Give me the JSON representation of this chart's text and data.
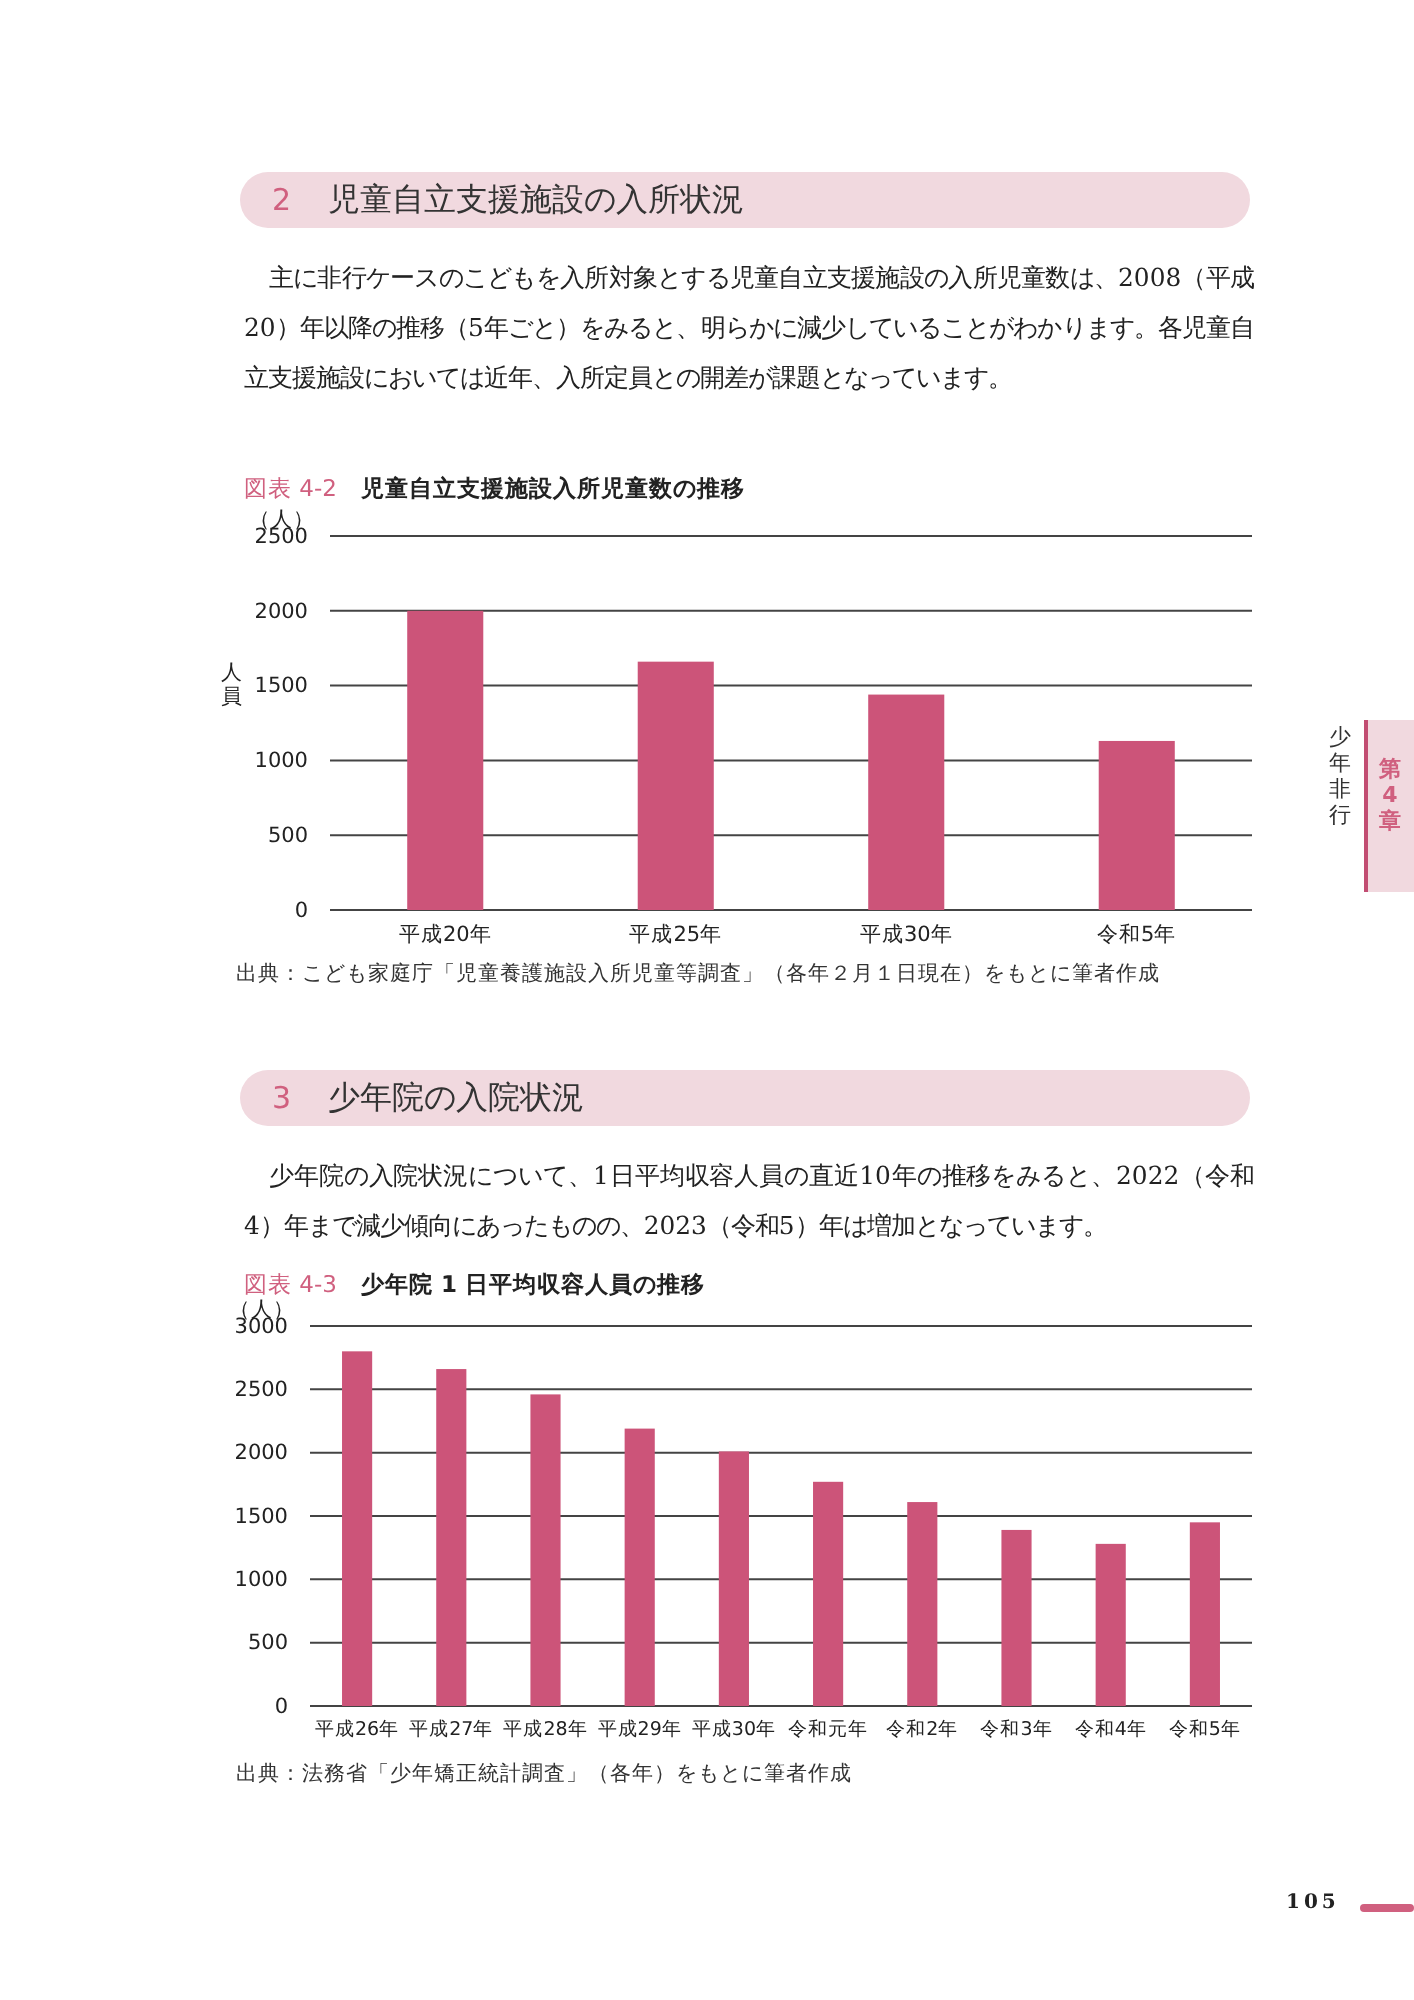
{
  "chart_data": [
    {
      "type": "bar",
      "title": "児童自立支援施設入所児童数の推移",
      "ylabel": "人員",
      "annotations": [
        "2",
        "児童自立支援施設の入所状況",
        "主に非行ケースのこどもを入所対象とする児童自立支援施設の入所児童数は、2008（平成20）年以降の推移（5年ごと）をみると、明らかに減少していることがわかります。各児童自立支援施設においては近年、入所定員との開差が課題となっています。",
        "図表 4-2",
        "（人）",
        "出典：こども家庭庁「児童養護施設入所児童等調査」（各年２月１日現在）をもとに筆者作成"
      ],
      "categories": [
        "平成20年",
        "平成25年",
        "平成30年",
        "令和5年"
      ],
      "values": [
        2000,
        1660,
        1440,
        1130
      ],
      "color": "#cc5479",
      "ylim": [
        0,
        2500
      ],
      "yticks": [
        0,
        500,
        1000,
        1500,
        2000,
        2500
      ],
      "grid": "y"
    },
    {
      "type": "bar",
      "title": "少年院 1 日平均収容人員の推移",
      "ylabel": "（人）",
      "annotations": [
        "3",
        "少年院の入院状況",
        "少年院の入院状況について、1日平均収容人員の直近10年の推移をみると、2022（令和4）年まで減少傾向にあったものの、2023（令和5）年は増加となっています。",
        "図表 4-3",
        "出典：法務省「少年矯正統計調査」（各年）をもとに筆者作成",
        "少年非行",
        "第4章",
        "105"
      ],
      "categories": [
        "平成26年",
        "平成27年",
        "平成28年",
        "平成29年",
        "平成30年",
        "令和元年",
        "令和2年",
        "令和3年",
        "令和4年",
        "令和5年"
      ],
      "values": [
        2800,
        2660,
        2460,
        2190,
        2010,
        1770,
        1610,
        1390,
        1280,
        1450
      ],
      "color": "#cc5479",
      "ylim": [
        0,
        3000
      ],
      "yticks": [
        0,
        500,
        1000,
        1500,
        2000,
        2500,
        3000
      ],
      "grid": "y"
    }
  ]
}
